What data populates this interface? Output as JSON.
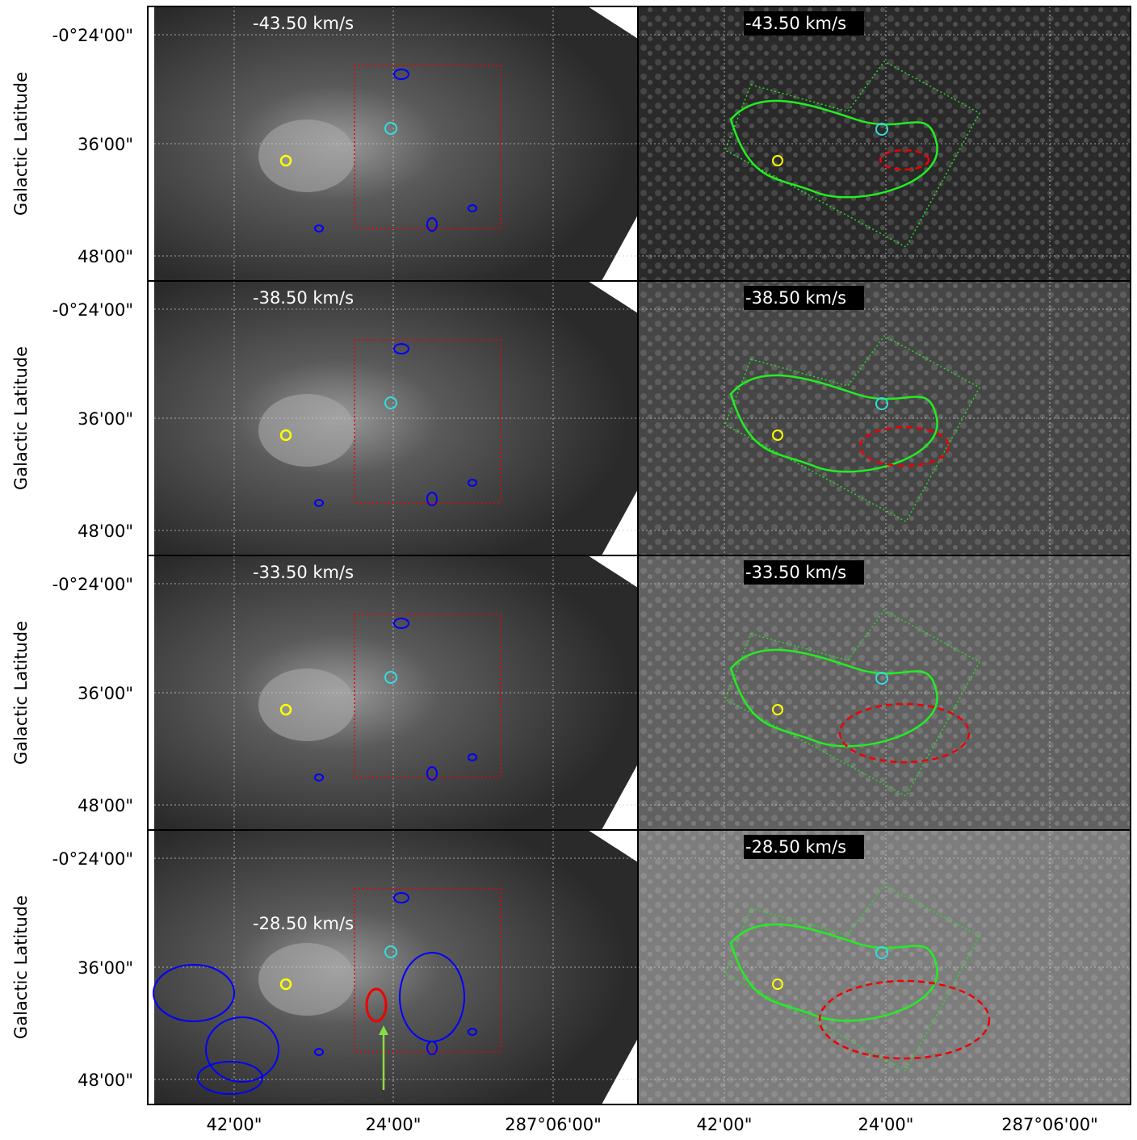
{
  "y_axis_label": "Galactic Latitude",
  "y_tick_labels": [
    "-0°24'00\"",
    "36'00\"",
    "48'00\""
  ],
  "x_tick_labels": [
    "42'00\"",
    "24'00\"",
    "287°06'00\""
  ],
  "panels": [
    {
      "velocity": "-43.50 km/s"
    },
    {
      "velocity": "-38.50 km/s"
    },
    {
      "velocity": "-33.50 km/s"
    },
    {
      "velocity": "-28.50 km/s"
    }
  ]
}
